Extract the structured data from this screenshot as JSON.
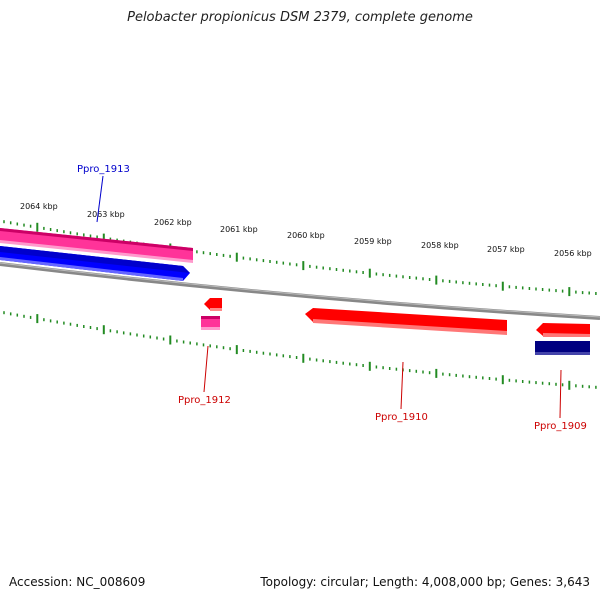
{
  "title": "Pelobacter propionicus DSM 2379, complete genome",
  "footer": {
    "accession": "Accession: NC_008609",
    "topology": "Topology: circular; Length: 4,008,000 bp; Genes: 3,643"
  },
  "scale_labels": [
    "2064 kbp",
    "2063 kbp",
    "2062 kbp",
    "2061 kbp",
    "2060 kbp",
    "2059 kbp",
    "2058 kbp",
    "2057 kbp",
    "2056 kbp"
  ],
  "genes": [
    {
      "name": "Ppro_1913",
      "color": "#0000cc"
    },
    {
      "name": "Ppro_1912",
      "color": "#cc0000"
    },
    {
      "name": "Ppro_1910",
      "color": "#cc0000"
    },
    {
      "name": "Ppro_1909",
      "color": "#cc0000"
    }
  ],
  "colors": {
    "forward_cds": "#0000ff",
    "reverse_cds": "#ff0000",
    "rna_feature": "#ff3399",
    "dark_feature": "#000080",
    "backbone": "#888888",
    "ticks": "#228b22"
  }
}
